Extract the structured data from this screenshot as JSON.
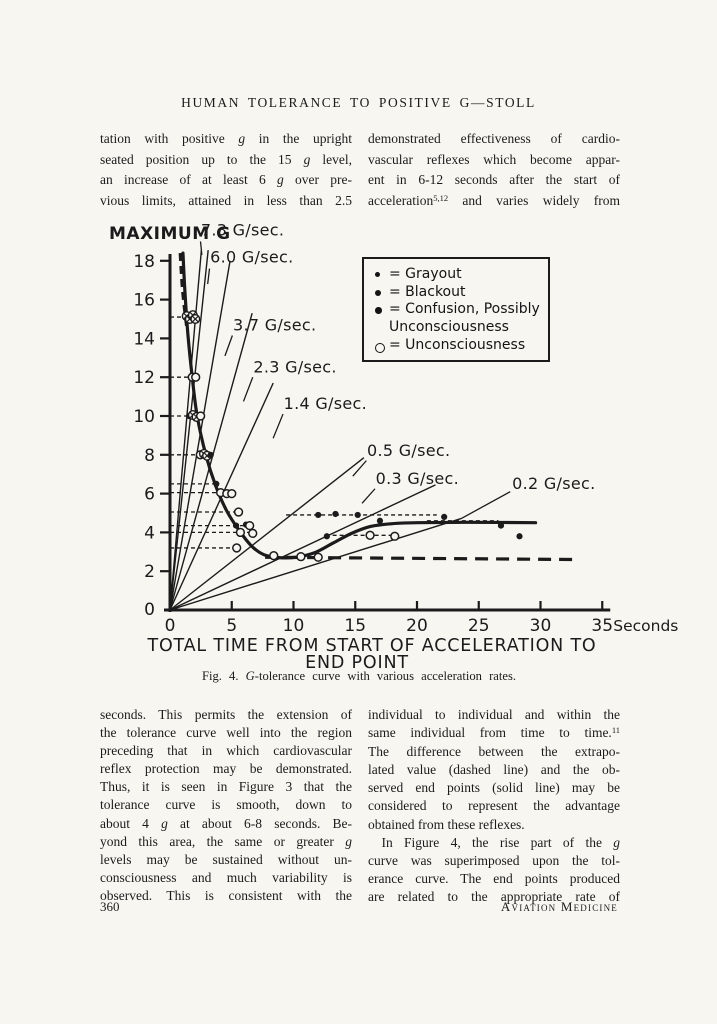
{
  "colors": {
    "paper": "#f7f6f1",
    "ink": "#1b1b1b"
  },
  "page": {
    "running_head": "HUMAN TOLERANCE TO POSITIVE G—STOLL",
    "page_number": "360",
    "journal": "Aviation Medicine"
  },
  "top_text": {
    "left_lines": [
      "tation with positive *g* in the upright",
      "seated position up to the 15 *g* level,",
      "an increase of at least 6 *g* over pre-",
      "vious limits, attained in less than 2.5"
    ],
    "right_lines": [
      "demonstrated effectiveness of cardio-",
      "vascular reflexes which become appar-",
      "ent in 6-12 seconds after the start of",
      "acceleration^5,12^ and varies widely from"
    ]
  },
  "figure_caption": "Fig. 4. *G*-tolerance curve with various acceleration rates.",
  "bottom_text": {
    "left_lines": [
      "seconds. This permits the extension of",
      "the tolerance curve well into the region",
      "preceding that in which cardiovascular",
      "reflex protection may be demonstrated.",
      "Thus, it is seen in Figure 3 that the",
      "tolerance curve is smooth, down to",
      "about 4 *g* at about 6-8 seconds. Be-",
      "yond this area, the same or greater *g*",
      "levels may be sustained without un-",
      "consciousness and much variability is",
      "observed. This is consistent with the"
    ],
    "right_lines": [
      "individual to individual and within the",
      "same individual from time to time.^11^",
      "The difference between the extrapo-",
      "lated value (dashed line) and the ob-",
      "served end points (solid line) may be",
      "considered to represent the advantage",
      "obtained from these reflexes.¶",
      " In Figure 4, the rise part of the *g*",
      "curve was superimposed upon the tol-",
      "erance curve. The end points produced",
      "are related to the appropriate rate of"
    ]
  },
  "chart_data": {
    "type": "line+scatter",
    "title": "MAXIMUM G",
    "xlabel_line1": "TOTAL TIME FROM START OF ACCELERATION TO",
    "xlabel_line2": "END POINT",
    "x_unit": "Seconds",
    "xlim": [
      0,
      35
    ],
    "ylim": [
      0,
      18.6
    ],
    "x_ticks": [
      0,
      5,
      10,
      15,
      20,
      25,
      30,
      35
    ],
    "y_ticks": [
      2,
      4,
      6,
      8,
      10,
      12,
      14,
      16,
      18
    ],
    "origin_label": "0",
    "grid": false,
    "legend_position": "upper right",
    "legend": [
      {
        "marker": "dot-sm",
        "label": "Grayout"
      },
      {
        "marker": "dot-md",
        "label": "Blackout"
      },
      {
        "marker": "dot-lg",
        "label": "Confusion, Possibly\nUnconsciousness"
      },
      {
        "marker": "open",
        "label": "Unconsciousness"
      }
    ],
    "rate_lines": [
      {
        "rate": 7.3,
        "label": "7.3 G/sec.",
        "end_g": 18.55,
        "label_t": 2.5,
        "label_g": 19.3,
        "leader": [
          [
            2.47,
            19.0
          ],
          [
            2.58,
            18.3
          ]
        ]
      },
      {
        "rate": 6.0,
        "label": "6.0 G/sec.",
        "end_g": 18.55,
        "label_t": 3.25,
        "label_g": 17.9,
        "leader": [
          [
            3.2,
            17.6
          ],
          [
            3.05,
            16.8
          ]
        ]
      },
      {
        "rate": 3.7,
        "label": "3.7 G/sec.",
        "end_g": 18.0,
        "label_t": 5.1,
        "label_g": 14.4,
        "leader": [
          [
            5.05,
            14.15
          ],
          [
            4.45,
            13.1
          ]
        ]
      },
      {
        "rate": 2.3,
        "label": "2.3 G/sec.",
        "end_g": 15.3,
        "label_t": 6.75,
        "label_g": 12.25,
        "leader": [
          [
            6.7,
            12.0
          ],
          [
            5.95,
            10.75
          ]
        ]
      },
      {
        "rate": 1.4,
        "label": "1.4 G/sec.",
        "end_g": 11.7,
        "label_t": 9.2,
        "label_g": 10.35,
        "leader": [
          [
            9.15,
            10.1
          ],
          [
            8.35,
            8.85
          ]
        ]
      },
      {
        "rate": 0.5,
        "label": "0.5 G/sec.",
        "end_g": 7.85,
        "label_t": 15.95,
        "label_g": 7.95,
        "leader": [
          [
            15.9,
            7.7
          ],
          [
            14.8,
            6.9
          ]
        ]
      },
      {
        "rate": 0.3,
        "label": "0.3 G/sec.",
        "end_g": 6.45,
        "label_t": 16.65,
        "label_g": 6.5,
        "leader": [
          [
            16.6,
            6.25
          ],
          [
            15.55,
            5.5
          ]
        ]
      },
      {
        "rate": 0.2,
        "label": "0.2 G/sec.",
        "end_g": 4.72,
        "label_t": 27.7,
        "label_g": 6.25,
        "leader": [
          [
            23.6,
            4.72
          ],
          [
            27.55,
            6.1
          ]
        ]
      }
    ],
    "tolerance_curve_solid": [
      [
        1.05,
        18.4
      ],
      [
        1.2,
        16.5
      ],
      [
        1.45,
        14.2
      ],
      [
        1.8,
        12.0
      ],
      [
        2.2,
        10.0
      ],
      [
        2.9,
        8.0
      ],
      [
        3.7,
        6.4
      ],
      [
        4.6,
        5.1
      ],
      [
        5.6,
        4.1
      ],
      [
        6.6,
        3.3
      ],
      [
        7.6,
        2.85
      ],
      [
        8.8,
        2.7
      ],
      [
        10.2,
        2.72
      ],
      [
        11.7,
        2.95
      ],
      [
        13.2,
        3.45
      ],
      [
        14.7,
        3.95
      ],
      [
        16.2,
        4.3
      ],
      [
        18.0,
        4.45
      ],
      [
        20.0,
        4.5
      ],
      [
        24.0,
        4.52
      ],
      [
        29.6,
        4.5
      ]
    ],
    "extrapolated_dashed": [
      [
        7.7,
        2.72
      ],
      [
        33.2,
        2.6
      ]
    ],
    "peak_dashed": [
      [
        0.82,
        18.4
      ],
      [
        1.02,
        16.4
      ],
      [
        1.38,
        14.4
      ]
    ],
    "ref_dashes": [
      {
        "g": 15.1,
        "t0": 0,
        "t1": 2.15
      },
      {
        "g": 12.0,
        "t0": 0,
        "t1": 2.1
      },
      {
        "g": 10.0,
        "t0": 0,
        "t1": 2.5
      },
      {
        "g": 8.0,
        "t0": 0,
        "t1": 3.3
      },
      {
        "g": 6.5,
        "t0": 0,
        "t1": 3.75
      },
      {
        "g": 6.05,
        "t0": 0,
        "t1": 5.0
      },
      {
        "g": 5.05,
        "t0": 0,
        "t1": 5.55
      },
      {
        "g": 4.35,
        "t0": 0,
        "t1": 6.45
      },
      {
        "g": 4.0,
        "t0": 0,
        "t1": 6.7
      },
      {
        "g": 3.2,
        "t0": 0,
        "t1": 5.35
      },
      {
        "g": 4.9,
        "t0": 9.4,
        "t1": 21.6
      },
      {
        "g": 3.85,
        "t0": 12.6,
        "t1": 18.4
      },
      {
        "g": 4.6,
        "t0": 20.8,
        "t1": 26.6
      }
    ],
    "points": [
      [
        1.35,
        15.15,
        "cx"
      ],
      [
        1.6,
        15.0,
        "cx"
      ],
      [
        1.85,
        15.2,
        "cx"
      ],
      [
        2.05,
        15.0,
        "cx"
      ],
      [
        1.8,
        12.0,
        "open"
      ],
      [
        2.08,
        12.0,
        "open"
      ],
      [
        1.55,
        10.0,
        "dot"
      ],
      [
        1.85,
        10.05,
        "cx"
      ],
      [
        2.15,
        9.95,
        "cx"
      ],
      [
        2.48,
        10.0,
        "open"
      ],
      [
        2.45,
        8.0,
        "open"
      ],
      [
        2.75,
        8.05,
        "cx"
      ],
      [
        3.0,
        7.95,
        "cx"
      ],
      [
        3.3,
        8.0,
        "dot"
      ],
      [
        3.75,
        6.5,
        "dot"
      ],
      [
        4.1,
        6.05,
        "open"
      ],
      [
        4.6,
        6.0,
        "open"
      ],
      [
        5.0,
        6.0,
        "open"
      ],
      [
        5.55,
        5.05,
        "open"
      ],
      [
        5.35,
        4.35,
        "dot"
      ],
      [
        6.15,
        4.4,
        "dot"
      ],
      [
        6.45,
        4.35,
        "open"
      ],
      [
        5.7,
        4.0,
        "open"
      ],
      [
        6.7,
        3.95,
        "open"
      ],
      [
        5.4,
        3.2,
        "open"
      ],
      [
        8.4,
        2.8,
        "open"
      ],
      [
        10.6,
        2.75,
        "open"
      ],
      [
        12.0,
        2.72,
        "open"
      ],
      [
        12.0,
        4.9,
        "dot"
      ],
      [
        13.4,
        4.95,
        "dot"
      ],
      [
        15.2,
        4.9,
        "dot"
      ],
      [
        17.0,
        4.6,
        "dot"
      ],
      [
        22.2,
        4.8,
        "dot"
      ],
      [
        12.7,
        3.8,
        "dot"
      ],
      [
        16.2,
        3.85,
        "open"
      ],
      [
        18.2,
        3.8,
        "open"
      ],
      [
        26.8,
        4.35,
        "dot"
      ],
      [
        28.3,
        3.8,
        "dot"
      ]
    ]
  }
}
